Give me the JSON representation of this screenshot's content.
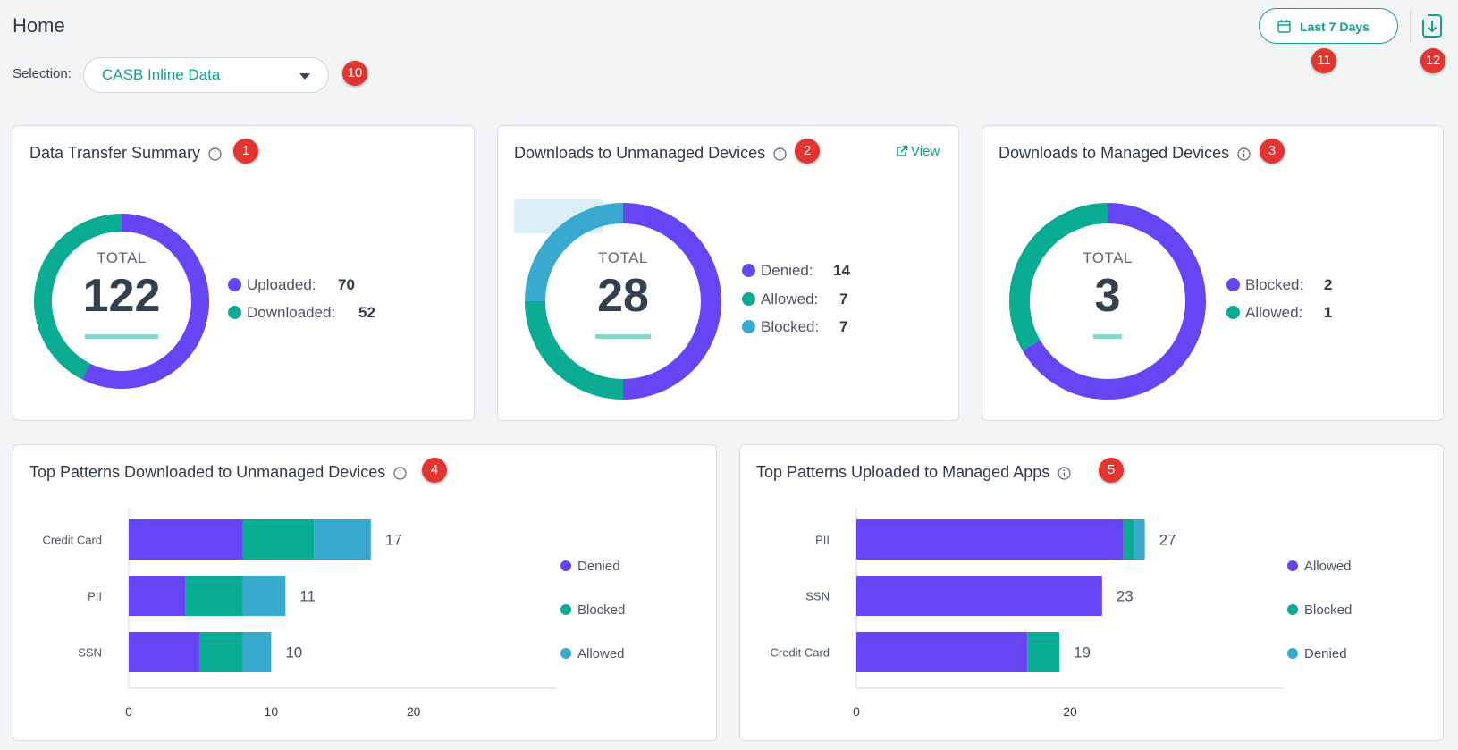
{
  "header": {
    "title": "Home",
    "selection_label": "Selection:",
    "selection_value": "CASB Inline Data",
    "date_range": "Last 7 Days"
  },
  "badges": [
    "1",
    "2",
    "3",
    "4",
    "5",
    "10",
    "11",
    "12"
  ],
  "colors": {
    "purple": "#6645f5",
    "green": "#0aab93",
    "blue": "#3aa9cf",
    "accent": "#12a08a"
  },
  "cards": {
    "data_transfer": {
      "title": "Data Transfer Summary",
      "total_label": "TOTAL",
      "total": "122",
      "legend": [
        {
          "label": "Uploaded:",
          "value": "70",
          "color": "#6645f5"
        },
        {
          "label": "Downloaded:",
          "value": "52",
          "color": "#0aab93"
        }
      ]
    },
    "unmanaged": {
      "title": "Downloads to Unmanaged Devices",
      "view_link": "View",
      "total_label": "TOTAL",
      "total": "28",
      "legend": [
        {
          "label": "Denied:",
          "value": "14",
          "color": "#6645f5"
        },
        {
          "label": "Allowed:",
          "value": "7",
          "color": "#0aab93"
        },
        {
          "label": "Blocked:",
          "value": "7",
          "color": "#3aa9cf"
        }
      ]
    },
    "managed": {
      "title": "Downloads to Managed Devices",
      "total_label": "TOTAL",
      "total": "3",
      "legend": [
        {
          "label": "Blocked:",
          "value": "2",
          "color": "#6645f5"
        },
        {
          "label": "Allowed:",
          "value": "1",
          "color": "#0aab93"
        }
      ]
    },
    "patterns_unmanaged": {
      "title": "Top Patterns Downloaded to Unmanaged Devices"
    },
    "patterns_managed": {
      "title": "Top Patterns Uploaded to Managed Apps"
    }
  },
  "chart_data": [
    {
      "type": "pie",
      "labels": [
        "Uploaded",
        "Downloaded"
      ],
      "values": [
        70,
        52
      ]
    },
    {
      "type": "pie",
      "labels": [
        "Denied",
        "Allowed",
        "Blocked"
      ],
      "values": [
        14,
        7,
        7
      ]
    },
    {
      "type": "pie",
      "labels": [
        "Blocked",
        "Allowed"
      ],
      "values": [
        2,
        1
      ]
    },
    {
      "type": "bar",
      "orientation": "horizontal",
      "stacked": true,
      "title": "Top Patterns Downloaded to Unmanaged Devices",
      "categories": [
        "Credit Card",
        "PII",
        "SSN"
      ],
      "series": [
        {
          "name": "Denied",
          "values": [
            8,
            4,
            5
          ],
          "color": "#6645f5"
        },
        {
          "name": "Blocked",
          "values": [
            5,
            4,
            3
          ],
          "color": "#0aab93"
        },
        {
          "name": "Allowed",
          "values": [
            4,
            3,
            2
          ],
          "color": "#3aa9cf"
        }
      ],
      "totals": [
        "17",
        "11",
        "10"
      ],
      "x_ticks": [
        "0",
        "10",
        "20"
      ],
      "xlim": [
        0,
        30
      ],
      "legend_position": "right"
    },
    {
      "type": "bar",
      "orientation": "horizontal",
      "stacked": true,
      "title": "Top Patterns Uploaded to Managed Apps",
      "categories": [
        "PII",
        "SSN",
        "Credit Card"
      ],
      "series": [
        {
          "name": "Allowed",
          "values": [
            25,
            23,
            16
          ],
          "color": "#6645f5"
        },
        {
          "name": "Blocked",
          "values": [
            1,
            0,
            3
          ],
          "color": "#0aab93"
        },
        {
          "name": "Denied",
          "values": [
            1,
            0,
            0
          ],
          "color": "#3aa9cf"
        }
      ],
      "totals": [
        "27",
        "23",
        "19"
      ],
      "x_ticks": [
        "0",
        "20"
      ],
      "xlim": [
        0,
        40
      ],
      "legend_position": "right"
    }
  ]
}
